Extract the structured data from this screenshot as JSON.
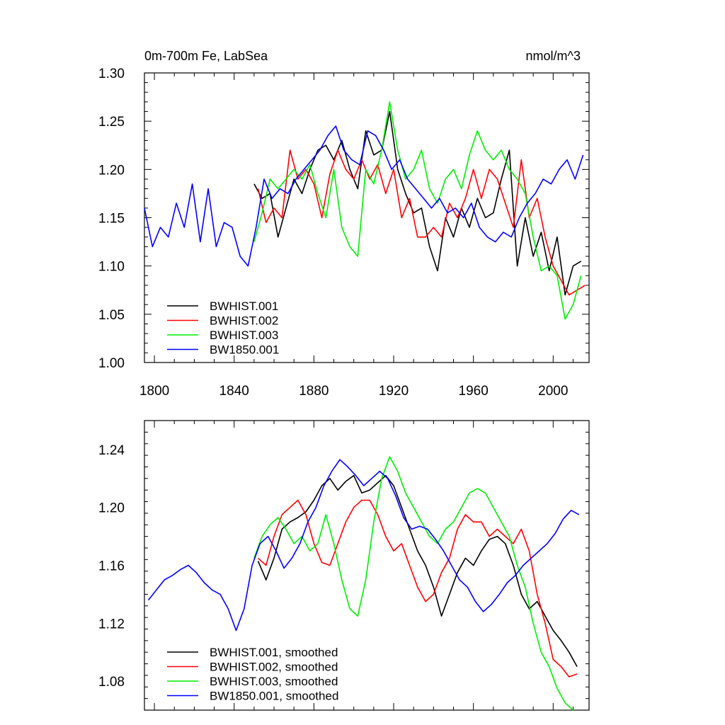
{
  "chart_data": [
    {
      "type": "line",
      "title_left": "0m-700m Fe, LabSea",
      "title_right": "nmol/m^3",
      "xlim": [
        1795,
        2018
      ],
      "ylim": [
        1.0,
        1.3
      ],
      "xticks": [
        1800,
        1840,
        1880,
        1920,
        1960,
        2000
      ],
      "yticks": [
        1.0,
        1.05,
        1.1,
        1.15,
        1.2,
        1.25,
        1.3
      ],
      "ytick_labels": [
        "1.00",
        "1.05",
        "1.10",
        "1.15",
        "1.20",
        "1.25",
        "1.30"
      ],
      "show_xtick_labels": true,
      "legend_position": "bottom-left",
      "series": [
        {
          "name": "BWHIST.001",
          "color": "#000000",
          "x": [
            1850,
            1854,
            1858,
            1862,
            1866,
            1870,
            1874,
            1878,
            1882,
            1886,
            1890,
            1894,
            1898,
            1902,
            1906,
            1910,
            1914,
            1918,
            1922,
            1926,
            1930,
            1934,
            1938,
            1942,
            1946,
            1950,
            1954,
            1958,
            1962,
            1966,
            1970,
            1974,
            1978,
            1982,
            1986,
            1990,
            1994,
            1998,
            2002,
            2006,
            2010,
            2014
          ],
          "y": [
            1.185,
            1.17,
            1.175,
            1.13,
            1.16,
            1.19,
            1.175,
            1.2,
            1.22,
            1.225,
            1.21,
            1.23,
            1.2,
            1.18,
            1.24,
            1.215,
            1.22,
            1.26,
            1.2,
            1.175,
            1.155,
            1.16,
            1.12,
            1.095,
            1.15,
            1.13,
            1.16,
            1.14,
            1.17,
            1.15,
            1.155,
            1.19,
            1.22,
            1.1,
            1.15,
            1.11,
            1.135,
            1.095,
            1.13,
            1.07,
            1.1,
            1.105
          ]
        },
        {
          "name": "BWHIST.002",
          "color": "#ff0000",
          "x": [
            1852,
            1856,
            1860,
            1864,
            1868,
            1872,
            1876,
            1880,
            1884,
            1888,
            1892,
            1896,
            1900,
            1904,
            1908,
            1912,
            1916,
            1920,
            1924,
            1928,
            1932,
            1936,
            1940,
            1944,
            1948,
            1952,
            1956,
            1960,
            1964,
            1968,
            1972,
            1976,
            1980,
            1984,
            1988,
            1992,
            1996,
            2000,
            2004,
            2008,
            2012,
            2016
          ],
          "y": [
            1.18,
            1.145,
            1.16,
            1.15,
            1.22,
            1.19,
            1.2,
            1.185,
            1.15,
            1.195,
            1.22,
            1.2,
            1.19,
            1.21,
            1.19,
            1.205,
            1.175,
            1.2,
            1.15,
            1.17,
            1.13,
            1.13,
            1.14,
            1.13,
            1.165,
            1.15,
            1.17,
            1.2,
            1.17,
            1.2,
            1.19,
            1.165,
            1.14,
            1.21,
            1.15,
            1.17,
            1.13,
            1.1,
            1.085,
            1.07,
            1.075,
            1.08
          ]
        },
        {
          "name": "BWHIST.003",
          "color": "#00ee00",
          "x": [
            1850,
            1854,
            1858,
            1862,
            1866,
            1870,
            1874,
            1878,
            1882,
            1886,
            1890,
            1894,
            1898,
            1902,
            1906,
            1910,
            1914,
            1918,
            1922,
            1926,
            1930,
            1934,
            1938,
            1942,
            1946,
            1950,
            1954,
            1958,
            1962,
            1966,
            1970,
            1974,
            1978,
            1982,
            1986,
            1990,
            1994,
            1998,
            2002,
            2006,
            2010,
            2014
          ],
          "y": [
            1.125,
            1.155,
            1.19,
            1.18,
            1.19,
            1.2,
            1.19,
            1.205,
            1.175,
            1.15,
            1.2,
            1.14,
            1.12,
            1.11,
            1.2,
            1.185,
            1.22,
            1.27,
            1.22,
            1.19,
            1.2,
            1.22,
            1.18,
            1.165,
            1.19,
            1.2,
            1.18,
            1.215,
            1.24,
            1.22,
            1.21,
            1.22,
            1.2,
            1.19,
            1.175,
            1.13,
            1.095,
            1.1,
            1.09,
            1.045,
            1.06,
            1.09
          ]
        },
        {
          "name": "BW1850.001",
          "color": "#0000ff",
          "x": [
            1795,
            1799,
            1803,
            1807,
            1811,
            1815,
            1819,
            1823,
            1827,
            1831,
            1835,
            1839,
            1843,
            1847,
            1851,
            1855,
            1859,
            1863,
            1867,
            1871,
            1875,
            1879,
            1883,
            1887,
            1891,
            1895,
            1899,
            1903,
            1907,
            1911,
            1915,
            1919,
            1923,
            1927,
            1931,
            1935,
            1939,
            1943,
            1947,
            1951,
            1955,
            1959,
            1963,
            1967,
            1971,
            1975,
            1979,
            1983,
            1987,
            1991,
            1995,
            1999,
            2003,
            2007,
            2011,
            2015
          ],
          "y": [
            1.16,
            1.12,
            1.14,
            1.13,
            1.165,
            1.14,
            1.185,
            1.125,
            1.18,
            1.12,
            1.145,
            1.14,
            1.11,
            1.1,
            1.14,
            1.19,
            1.17,
            1.18,
            1.175,
            1.19,
            1.2,
            1.21,
            1.22,
            1.235,
            1.245,
            1.22,
            1.21,
            1.205,
            1.24,
            1.235,
            1.22,
            1.2,
            1.21,
            1.19,
            1.18,
            1.17,
            1.16,
            1.17,
            1.155,
            1.16,
            1.15,
            1.165,
            1.14,
            1.13,
            1.125,
            1.135,
            1.13,
            1.15,
            1.165,
            1.175,
            1.19,
            1.185,
            1.2,
            1.21,
            1.19,
            1.215
          ]
        }
      ]
    },
    {
      "type": "line",
      "xlim": [
        1795,
        2018
      ],
      "ylim": [
        1.06,
        1.26
      ],
      "xticks": [
        1800,
        1840,
        1880,
        1920,
        1960,
        2000
      ],
      "yticks": [
        1.08,
        1.12,
        1.16,
        1.2,
        1.24
      ],
      "ytick_labels": [
        "1.08",
        "1.12",
        "1.16",
        "1.20",
        "1.24"
      ],
      "show_xtick_labels": false,
      "legend_position": "bottom-left",
      "series": [
        {
          "name": "BWHIST.001, smoothed",
          "color": "#000000",
          "x": [
            1852,
            1856,
            1860,
            1864,
            1868,
            1872,
            1876,
            1880,
            1884,
            1888,
            1892,
            1896,
            1900,
            1904,
            1908,
            1912,
            1916,
            1920,
            1924,
            1928,
            1932,
            1936,
            1940,
            1944,
            1948,
            1952,
            1956,
            1960,
            1964,
            1968,
            1972,
            1976,
            1980,
            1984,
            1988,
            1992,
            1996,
            2000,
            2004,
            2008,
            2012
          ],
          "y": [
            1.163,
            1.15,
            1.165,
            1.185,
            1.19,
            1.193,
            1.197,
            1.205,
            1.215,
            1.22,
            1.212,
            1.218,
            1.222,
            1.21,
            1.212,
            1.217,
            1.222,
            1.215,
            1.2,
            1.185,
            1.17,
            1.16,
            1.145,
            1.125,
            1.14,
            1.155,
            1.165,
            1.16,
            1.17,
            1.178,
            1.18,
            1.175,
            1.16,
            1.14,
            1.13,
            1.135,
            1.125,
            1.115,
            1.108,
            1.1,
            1.09
          ]
        },
        {
          "name": "BWHIST.002, smoothed",
          "color": "#ff0000",
          "x": [
            1852,
            1856,
            1860,
            1864,
            1868,
            1872,
            1876,
            1880,
            1884,
            1888,
            1892,
            1896,
            1900,
            1904,
            1908,
            1912,
            1916,
            1920,
            1924,
            1928,
            1932,
            1936,
            1940,
            1944,
            1948,
            1952,
            1956,
            1960,
            1964,
            1968,
            1972,
            1976,
            1980,
            1984,
            1988,
            1992,
            1996,
            2000,
            2004,
            2008,
            2012
          ],
          "y": [
            1.165,
            1.16,
            1.18,
            1.195,
            1.2,
            1.205,
            1.195,
            1.175,
            1.162,
            1.16,
            1.175,
            1.19,
            1.2,
            1.205,
            1.205,
            1.195,
            1.18,
            1.17,
            1.175,
            1.16,
            1.145,
            1.135,
            1.14,
            1.155,
            1.165,
            1.185,
            1.195,
            1.19,
            1.19,
            1.18,
            1.185,
            1.18,
            1.175,
            1.185,
            1.17,
            1.14,
            1.12,
            1.095,
            1.09,
            1.083,
            1.085
          ]
        },
        {
          "name": "BWHIST.003, smoothed",
          "color": "#00ee00",
          "x": [
            1850,
            1854,
            1858,
            1862,
            1866,
            1870,
            1874,
            1878,
            1882,
            1886,
            1890,
            1894,
            1898,
            1902,
            1906,
            1910,
            1914,
            1918,
            1922,
            1926,
            1930,
            1934,
            1938,
            1942,
            1946,
            1950,
            1954,
            1958,
            1962,
            1966,
            1970,
            1974,
            1978,
            1982,
            1986,
            1990,
            1994,
            1998,
            2002,
            2006,
            2010
          ],
          "y": [
            1.165,
            1.18,
            1.188,
            1.193,
            1.185,
            1.175,
            1.18,
            1.17,
            1.175,
            1.195,
            1.175,
            1.15,
            1.13,
            1.125,
            1.15,
            1.19,
            1.22,
            1.235,
            1.225,
            1.21,
            1.2,
            1.19,
            1.18,
            1.175,
            1.185,
            1.19,
            1.2,
            1.21,
            1.213,
            1.21,
            1.2,
            1.19,
            1.18,
            1.16,
            1.145,
            1.12,
            1.1,
            1.09,
            1.075,
            1.065,
            1.06
          ]
        },
        {
          "name": "BW1850.001, smoothed",
          "color": "#0000ff",
          "x": [
            1797,
            1801,
            1805,
            1809,
            1813,
            1817,
            1821,
            1825,
            1829,
            1833,
            1837,
            1841,
            1845,
            1849,
            1853,
            1857,
            1861,
            1865,
            1869,
            1873,
            1877,
            1881,
            1885,
            1889,
            1893,
            1897,
            1901,
            1905,
            1909,
            1913,
            1917,
            1921,
            1925,
            1929,
            1933,
            1937,
            1941,
            1945,
            1949,
            1953,
            1957,
            1961,
            1965,
            1969,
            1973,
            1977,
            1981,
            1985,
            1989,
            1993,
            1997,
            2001,
            2005,
            2009,
            2013
          ],
          "y": [
            1.136,
            1.143,
            1.15,
            1.153,
            1.157,
            1.16,
            1.155,
            1.148,
            1.143,
            1.14,
            1.13,
            1.115,
            1.13,
            1.16,
            1.175,
            1.18,
            1.17,
            1.158,
            1.165,
            1.175,
            1.19,
            1.2,
            1.215,
            1.225,
            1.233,
            1.228,
            1.222,
            1.215,
            1.22,
            1.225,
            1.22,
            1.208,
            1.193,
            1.185,
            1.187,
            1.185,
            1.178,
            1.17,
            1.16,
            1.15,
            1.145,
            1.135,
            1.128,
            1.133,
            1.14,
            1.148,
            1.153,
            1.16,
            1.165,
            1.17,
            1.175,
            1.182,
            1.192,
            1.198,
            1.195
          ]
        }
      ]
    }
  ]
}
